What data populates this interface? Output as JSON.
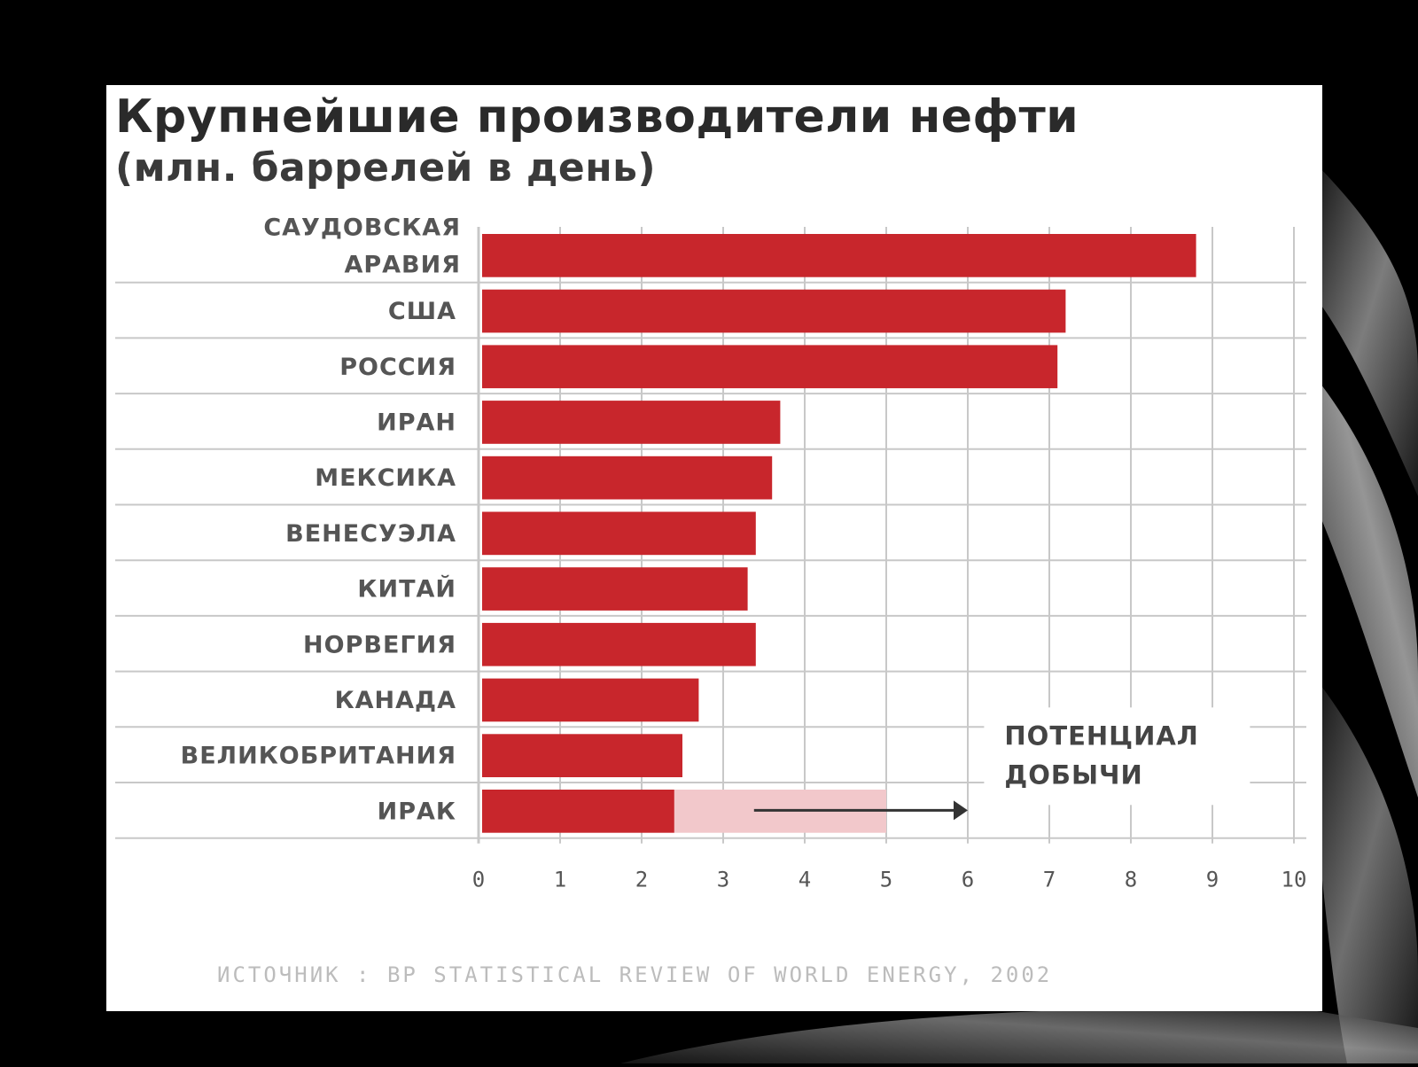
{
  "colors": {
    "bar": "#c8262c",
    "potential": "#f2c8cb",
    "grid": "#c8c8c8",
    "background": "#000000",
    "card": "#ffffff"
  },
  "chart_data": {
    "type": "bar",
    "orientation": "horizontal",
    "title": "Крупнейшие производители нефти",
    "subtitle": "(млн. баррелей в день)",
    "categories": [
      "САУДОВСКАЯ АРАВИЯ",
      "США",
      "РОССИЯ",
      "ИРАН",
      "МЕКСИКА",
      "ВЕНЕСУЭЛА",
      "КИТАЙ",
      "НОРВЕГИЯ",
      "КАНАДА",
      "ВЕЛИКОБРИТАНИЯ",
      "ИРАК"
    ],
    "category_lines": [
      [
        "САУДОВСКАЯ",
        "АРАВИЯ"
      ],
      [
        "США"
      ],
      [
        "РОССИЯ"
      ],
      [
        "ИРАН"
      ],
      [
        "МЕКСИКА"
      ],
      [
        "ВЕНЕСУЭЛА"
      ],
      [
        "КИТАЙ"
      ],
      [
        "НОРВЕГИЯ"
      ],
      [
        "КАНАДА"
      ],
      [
        "ВЕЛИКОБРИТАНИЯ"
      ],
      [
        "ИРАК"
      ]
    ],
    "values": [
      8.8,
      7.2,
      7.1,
      3.7,
      3.6,
      3.4,
      3.3,
      3.4,
      2.7,
      2.5,
      2.4
    ],
    "xlim": [
      0,
      10
    ],
    "xticks": [
      "0",
      "1",
      "2",
      "3",
      "4",
      "5",
      "6",
      "7",
      "8",
      "9",
      "10"
    ],
    "grid": true,
    "annotation": {
      "category": "ИРАК",
      "text_lines": [
        "ПОТЕНЦИАЛ",
        "ДОБЫЧИ"
      ],
      "potential_to": 5.0,
      "arrow_to": 6.0
    },
    "source": "ИСТОЧНИК : BP STATISTICAL REVIEW OF WORLD ENERGY, 2002"
  }
}
